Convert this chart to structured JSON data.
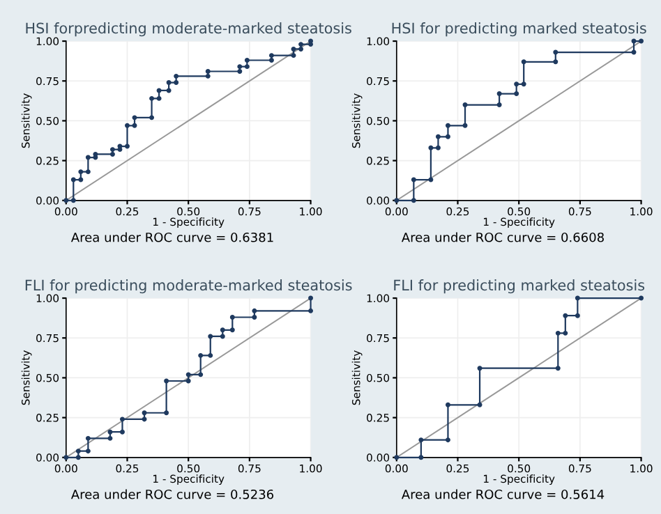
{
  "chart_data": [
    {
      "type": "line",
      "title": "HSI forpredicting moderate-marked steatosis",
      "xlabel": "1 - Specificity",
      "ylabel": "Sensitivity",
      "annotations": [
        "Area under ROC curve = 0.6381"
      ],
      "xlim": [
        0,
        1
      ],
      "ylim": [
        0,
        1
      ],
      "xticks": [
        {
          "value": 0,
          "label": "0.00"
        },
        {
          "value": 0.25,
          "label": "0.25"
        },
        {
          "value": 0.5,
          "label": "0.50"
        },
        {
          "value": 0.75,
          "label": "0.75"
        },
        {
          "value": 1,
          "label": "1.00"
        }
      ],
      "yticks": [
        {
          "value": 0,
          "label": "0.00"
        },
        {
          "value": 0.25,
          "label": "0.25"
        },
        {
          "value": 0.5,
          "label": "0.50"
        },
        {
          "value": 0.75,
          "label": "0.75"
        },
        {
          "value": 1,
          "label": "1.00"
        }
      ],
      "grid": true,
      "marker": "circle",
      "series": [
        {
          "color": "#1f3a5f",
          "x": [
            0,
            0.03,
            0.03,
            0.06,
            0.06,
            0.09,
            0.09,
            0.12,
            0.12,
            0.19,
            0.19,
            0.22,
            0.22,
            0.25,
            0.25,
            0.28,
            0.28,
            0.35,
            0.35,
            0.38,
            0.38,
            0.42,
            0.42,
            0.45,
            0.45,
            0.58,
            0.58,
            0.71,
            0.71,
            0.74,
            0.74,
            0.84,
            0.84,
            0.93,
            0.93,
            0.96,
            0.96,
            1,
            1
          ],
          "values": [
            0,
            0,
            0.13,
            0.13,
            0.18,
            0.18,
            0.27,
            0.27,
            0.29,
            0.29,
            0.32,
            0.32,
            0.34,
            0.34,
            0.47,
            0.47,
            0.52,
            0.52,
            0.64,
            0.64,
            0.69,
            0.69,
            0.74,
            0.74,
            0.78,
            0.78,
            0.81,
            0.81,
            0.84,
            0.84,
            0.88,
            0.88,
            0.91,
            0.91,
            0.95,
            0.95,
            0.98,
            0.98,
            1
          ]
        },
        {
          "color": "#999999",
          "marker": "none",
          "x": [
            0,
            1
          ],
          "values": [
            0,
            1
          ]
        }
      ]
    },
    {
      "type": "line",
      "title": "HSI for predicting marked steatosis",
      "xlabel": "1 - Specificity",
      "ylabel": "Sensitivity",
      "annotations": [
        "Area under ROC curve = 0.6608"
      ],
      "xlim": [
        0,
        1
      ],
      "ylim": [
        0,
        1
      ],
      "xticks": [
        {
          "value": 0,
          "label": "0.00"
        },
        {
          "value": 0.25,
          "label": "0.25"
        },
        {
          "value": 0.5,
          "label": "0.50"
        },
        {
          "value": 0.75,
          "label": "0.75"
        },
        {
          "value": 1,
          "label": "1.00"
        }
      ],
      "yticks": [
        {
          "value": 0,
          "label": "0.00"
        },
        {
          "value": 0.25,
          "label": "0.25"
        },
        {
          "value": 0.5,
          "label": "0.50"
        },
        {
          "value": 0.75,
          "label": "0.75"
        },
        {
          "value": 1,
          "label": "1.00"
        }
      ],
      "grid": true,
      "marker": "circle",
      "series": [
        {
          "color": "#1f3a5f",
          "x": [
            0,
            0.07,
            0.07,
            0.14,
            0.14,
            0.17,
            0.17,
            0.21,
            0.21,
            0.28,
            0.28,
            0.42,
            0.42,
            0.49,
            0.49,
            0.52,
            0.52,
            0.65,
            0.65,
            0.97,
            0.97,
            1
          ],
          "values": [
            0,
            0,
            0.13,
            0.13,
            0.33,
            0.33,
            0.4,
            0.4,
            0.47,
            0.47,
            0.6,
            0.6,
            0.67,
            0.67,
            0.73,
            0.73,
            0.87,
            0.87,
            0.93,
            0.93,
            1,
            1
          ]
        },
        {
          "color": "#999999",
          "marker": "none",
          "x": [
            0,
            1
          ],
          "values": [
            0,
            1
          ]
        }
      ]
    },
    {
      "type": "line",
      "title": "FLI for predicting moderate-marked steatosis",
      "xlabel": "1 - Specificity",
      "ylabel": "Sensitivity",
      "annotations": [
        "Area under ROC curve = 0.5236"
      ],
      "xlim": [
        0,
        1
      ],
      "ylim": [
        0,
        1
      ],
      "xticks": [
        {
          "value": 0,
          "label": "0.00"
        },
        {
          "value": 0.25,
          "label": "0.25"
        },
        {
          "value": 0.5,
          "label": "0.50"
        },
        {
          "value": 0.75,
          "label": "0.75"
        },
        {
          "value": 1,
          "label": "1.00"
        }
      ],
      "yticks": [
        {
          "value": 0,
          "label": "0.00"
        },
        {
          "value": 0.25,
          "label": "0.25"
        },
        {
          "value": 0.5,
          "label": "0.50"
        },
        {
          "value": 0.75,
          "label": "0.75"
        },
        {
          "value": 1,
          "label": "1.00"
        }
      ],
      "grid": true,
      "marker": "circle",
      "series": [
        {
          "color": "#1f3a5f",
          "x": [
            0,
            0.05,
            0.05,
            0.09,
            0.09,
            0.18,
            0.18,
            0.23,
            0.23,
            0.32,
            0.32,
            0.41,
            0.41,
            0.5,
            0.5,
            0.55,
            0.55,
            0.59,
            0.59,
            0.64,
            0.64,
            0.68,
            0.68,
            0.77,
            0.77,
            1,
            1
          ],
          "values": [
            0,
            0,
            0.04,
            0.04,
            0.12,
            0.12,
            0.16,
            0.16,
            0.24,
            0.24,
            0.28,
            0.28,
            0.48,
            0.48,
            0.52,
            0.52,
            0.64,
            0.64,
            0.76,
            0.76,
            0.8,
            0.8,
            0.88,
            0.88,
            0.92,
            0.92,
            1
          ]
        },
        {
          "color": "#999999",
          "marker": "none",
          "x": [
            0,
            1
          ],
          "values": [
            0,
            1
          ]
        }
      ]
    },
    {
      "type": "line",
      "title": "FLI for predicting marked steatosis",
      "xlabel": "1 - Specificity",
      "ylabel": "Sensitivity",
      "annotations": [
        "Area under ROC curve = 0.5614"
      ],
      "xlim": [
        0,
        1
      ],
      "ylim": [
        0,
        1
      ],
      "xticks": [
        {
          "value": 0,
          "label": "0.00"
        },
        {
          "value": 0.25,
          "label": "0.25"
        },
        {
          "value": 0.5,
          "label": "0.50"
        },
        {
          "value": 0.75,
          "label": "0.75"
        },
        {
          "value": 1,
          "label": "1.00"
        }
      ],
      "yticks": [
        {
          "value": 0,
          "label": "0.00"
        },
        {
          "value": 0.25,
          "label": "0.25"
        },
        {
          "value": 0.5,
          "label": "0.50"
        },
        {
          "value": 0.75,
          "label": "0.75"
        },
        {
          "value": 1,
          "label": "1.00"
        }
      ],
      "grid": true,
      "marker": "circle",
      "series": [
        {
          "color": "#1f3a5f",
          "x": [
            0,
            0.1,
            0.1,
            0.21,
            0.21,
            0.34,
            0.34,
            0.66,
            0.66,
            0.69,
            0.69,
            0.74,
            0.74,
            1
          ],
          "values": [
            0,
            0,
            0.11,
            0.11,
            0.33,
            0.33,
            0.56,
            0.56,
            0.78,
            0.78,
            0.89,
            0.89,
            1,
            1
          ]
        },
        {
          "color": "#999999",
          "marker": "none",
          "x": [
            0,
            1
          ],
          "values": [
            0,
            1
          ]
        }
      ]
    }
  ]
}
